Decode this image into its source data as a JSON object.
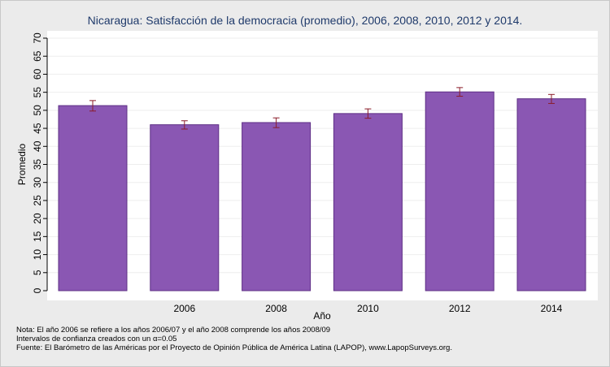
{
  "chart_data": {
    "type": "bar",
    "title": "Nicaragua: Satisfacción de la democracia (promedio), 2006, 2008, 2010, 2012 y 2014.",
    "xlabel": "Año",
    "ylabel": "Promedio",
    "ylim": [
      0,
      70
    ],
    "yticks": [
      0,
      5,
      10,
      15,
      20,
      25,
      30,
      35,
      40,
      45,
      50,
      55,
      60,
      65,
      70
    ],
    "categories": [
      "",
      "2006",
      "2008",
      "2010",
      "2012",
      "2014"
    ],
    "values": [
      51.3,
      46.0,
      46.6,
      49.1,
      55.1,
      53.2
    ],
    "ci_low": [
      49.8,
      44.8,
      45.2,
      47.8,
      53.9,
      51.9
    ],
    "ci_high": [
      52.7,
      47.1,
      47.9,
      50.4,
      56.3,
      54.4
    ],
    "grid": true,
    "colors": {
      "bar": "#8a57b3",
      "bar_edge": "#5e2f86",
      "error_bar": "#8b1c2a",
      "grid": "#ffffff",
      "background": "#ebebeb",
      "plot_background": "#ffffff",
      "title": "#1f3a6b"
    }
  },
  "notes": [
    "Nota: El año 2006 se refiere a los años 2006/07 y el año 2008 comprende los años 2008/09",
    "Intervalos de confianza creados con un α=0.05",
    "Fuente: El Barómetro de las Américas por el Proyecto de Opinión Pública de América Latina (LAPOP), www.LapopSurveys.org."
  ]
}
